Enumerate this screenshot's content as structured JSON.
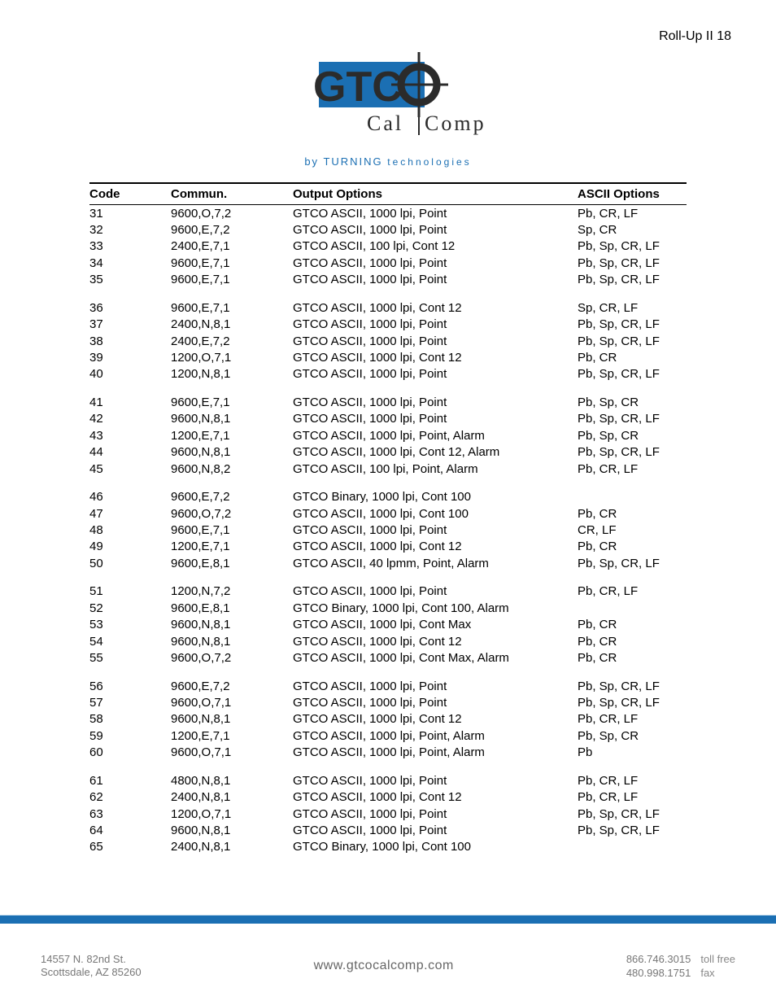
{
  "doc_title": "Roll-Up II 18",
  "brand": {
    "logo_primary": "#1b6fb3",
    "logo_dark": "#2b2b2b",
    "byline_prefix": "by",
    "byline_main": "TURNING",
    "byline_suffix": "technologies",
    "wordmark_left": "Cal",
    "wordmark_right": "Comp"
  },
  "table": {
    "headers": {
      "code": "Code",
      "commun": "Commun.",
      "output": "Output Options",
      "ascii": "ASCII Options"
    },
    "groups": [
      [
        {
          "code": "31",
          "commun": "9600,O,7,2",
          "output": "GTCO ASCII, 1000 lpi, Point",
          "ascii": "Pb, CR, LF"
        },
        {
          "code": "32",
          "commun": "9600,E,7,2",
          "output": "GTCO ASCII, 1000 lpi, Point",
          "ascii": "Sp, CR"
        },
        {
          "code": "33",
          "commun": "2400,E,7,1",
          "output": "GTCO ASCII, 100 lpi, Cont 12",
          "ascii": "Pb, Sp, CR, LF"
        },
        {
          "code": "34",
          "commun": "9600,E,7,1",
          "output": "GTCO ASCII, 1000 lpi, Point",
          "ascii": "Pb, Sp, CR, LF"
        },
        {
          "code": "35",
          "commun": "9600,E,7,1",
          "output": "GTCO ASCII, 1000 lpi, Point",
          "ascii": "Pb, Sp, CR, LF"
        }
      ],
      [
        {
          "code": "36",
          "commun": "9600,E,7,1",
          "output": "GTCO ASCII, 1000 lpi, Cont 12",
          "ascii": "Sp, CR, LF"
        },
        {
          "code": "37",
          "commun": "2400,N,8,1",
          "output": "GTCO ASCII, 1000 lpi, Point",
          "ascii": "Pb, Sp, CR, LF"
        },
        {
          "code": "38",
          "commun": "2400,E,7,2",
          "output": "GTCO ASCII, 1000 lpi, Point",
          "ascii": "Pb, Sp, CR, LF"
        },
        {
          "code": "39",
          "commun": "1200,O,7,1",
          "output": "GTCO ASCII, 1000 lpi, Cont 12",
          "ascii": "Pb, CR"
        },
        {
          "code": "40",
          "commun": "1200,N,8,1",
          "output": "GTCO ASCII, 1000 lpi, Point",
          "ascii": "Pb, Sp, CR, LF"
        }
      ],
      [
        {
          "code": "41",
          "commun": "9600,E,7,1",
          "output": "GTCO ASCII, 1000 lpi, Point",
          "ascii": "Pb, Sp, CR"
        },
        {
          "code": "42",
          "commun": "9600,N,8,1",
          "output": "GTCO ASCII, 1000 lpi, Point",
          "ascii": "Pb, Sp, CR, LF"
        },
        {
          "code": "43",
          "commun": "1200,E,7,1",
          "output": "GTCO ASCII, 1000 lpi, Point, Alarm",
          "ascii": "Pb, Sp, CR"
        },
        {
          "code": "44",
          "commun": "9600,N,8,1",
          "output": "GTCO ASCII, 1000 lpi, Cont 12, Alarm",
          "ascii": "Pb, Sp, CR, LF"
        },
        {
          "code": "45",
          "commun": "9600,N,8,2",
          "output": "GTCO ASCII, 100 lpi, Point, Alarm",
          "ascii": "Pb, CR, LF"
        }
      ],
      [
        {
          "code": "46",
          "commun": "9600,E,7,2",
          "output": "GTCO Binary, 1000 lpi, Cont 100",
          "ascii": ""
        },
        {
          "code": "47",
          "commun": "9600,O,7,2",
          "output": "GTCO ASCII, 1000 lpi, Cont 100",
          "ascii": "Pb, CR"
        },
        {
          "code": "48",
          "commun": "9600,E,7,1",
          "output": "GTCO ASCII, 1000 lpi, Point",
          "ascii": "CR, LF"
        },
        {
          "code": "49",
          "commun": "1200,E,7,1",
          "output": "GTCO ASCII, 1000 lpi, Cont 12",
          "ascii": "Pb, CR"
        },
        {
          "code": "50",
          "commun": "9600,E,8,1",
          "output": "GTCO ASCII, 40 lpmm, Point, Alarm",
          "ascii": "Pb, Sp, CR, LF"
        }
      ],
      [
        {
          "code": "51",
          "commun": "1200,N,7,2",
          "output": "GTCO ASCII, 1000 lpi, Point",
          "ascii": "Pb, CR, LF"
        },
        {
          "code": "52",
          "commun": "9600,E,8,1",
          "output": "GTCO Binary, 1000 lpi, Cont 100, Alarm",
          "ascii": ""
        },
        {
          "code": "53",
          "commun": "9600,N,8,1",
          "output": "GTCO ASCII, 1000 lpi, Cont Max",
          "ascii": "Pb, CR"
        },
        {
          "code": "54",
          "commun": "9600,N,8,1",
          "output": "GTCO ASCII, 1000 lpi, Cont 12",
          "ascii": "Pb, CR"
        },
        {
          "code": "55",
          "commun": "9600,O,7,2",
          "output": "GTCO ASCII, 1000 lpi, Cont Max, Alarm",
          "ascii": "Pb, CR"
        }
      ],
      [
        {
          "code": "56",
          "commun": "9600,E,7,2",
          "output": "GTCO ASCII, 1000 lpi, Point",
          "ascii": "Pb, Sp, CR, LF"
        },
        {
          "code": "57",
          "commun": "9600,O,7,1",
          "output": "GTCO ASCII, 1000 lpi, Point",
          "ascii": "Pb, Sp, CR, LF"
        },
        {
          "code": "58",
          "commun": "9600,N,8,1",
          "output": "GTCO ASCII, 1000 lpi, Cont 12",
          "ascii": "Pb, CR, LF"
        },
        {
          "code": "59",
          "commun": "1200,E,7,1",
          "output": "GTCO ASCII, 1000 lpi, Point, Alarm",
          "ascii": "Pb, Sp, CR"
        },
        {
          "code": "60",
          "commun": "9600,O,7,1",
          "output": "GTCO ASCII, 1000 lpi, Point, Alarm",
          "ascii": "Pb"
        }
      ],
      [
        {
          "code": "61",
          "commun": "4800,N,8,1",
          "output": "GTCO ASCII, 1000 lpi, Point",
          "ascii": "Pb, CR, LF"
        },
        {
          "code": "62",
          "commun": "2400,N,8,1",
          "output": "GTCO ASCII, 1000 lpi, Cont 12",
          "ascii": "Pb, CR, LF"
        },
        {
          "code": "63",
          "commun": "1200,O,7,1",
          "output": "GTCO ASCII, 1000 lpi, Point",
          "ascii": "Pb, Sp, CR, LF"
        },
        {
          "code": "64",
          "commun": "9600,N,8,1",
          "output": "GTCO ASCII, 1000 lpi, Point",
          "ascii": "Pb, Sp, CR, LF"
        },
        {
          "code": "65",
          "commun": "2400,N,8,1",
          "output": "GTCO Binary, 1000 lpi, Cont 100",
          "ascii": ""
        }
      ]
    ]
  },
  "footer": {
    "address_line1": "14557 N. 82nd St.",
    "address_line2": "Scottsdale, AZ 85260",
    "website": "www.gtcocalcomp.com",
    "phone_tollfree": "866.746.3015",
    "phone_tollfree_label": "toll free",
    "phone_fax": "480.998.1751",
    "phone_fax_label": "fax"
  }
}
